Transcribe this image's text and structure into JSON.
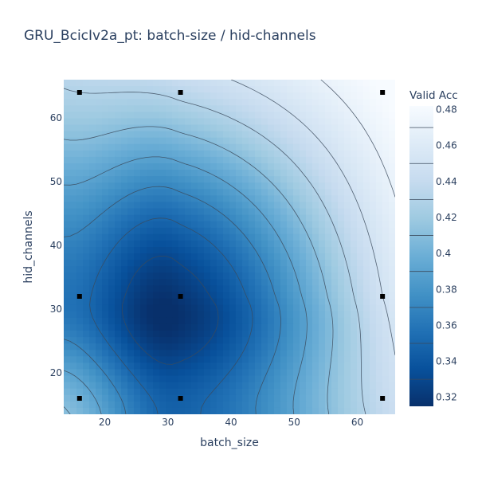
{
  "chart_data": {
    "type": "contour",
    "title": "GRU_BcicIv2a_pt: batch-size / hid-channels",
    "xlabel": "batch_size",
    "ylabel": "hid_channels",
    "colorbar_title": "Valid Acc",
    "xlim": [
      13.5,
      66
    ],
    "ylim": [
      13.5,
      66
    ],
    "x_ticks": [
      20,
      30,
      40,
      50,
      60
    ],
    "y_ticks": [
      20,
      30,
      40,
      50,
      60
    ],
    "z_range": [
      0.315,
      0.482
    ],
    "colorbar_ticks": [
      0.32,
      0.34,
      0.36,
      0.38,
      0.4,
      0.42,
      0.44,
      0.46,
      0.48
    ],
    "colorscale": [
      "#08306b",
      "#08519c",
      "#2171b5",
      "#4292c6",
      "#6baed6",
      "#9ecae1",
      "#c6dbef",
      "#deebf7",
      "#f7fbff"
    ],
    "points": [
      {
        "x": 16,
        "y": 16,
        "z": 0.4
      },
      {
        "x": 32,
        "y": 16,
        "z": 0.345
      },
      {
        "x": 64,
        "y": 16,
        "z": 0.44
      },
      {
        "x": 16,
        "y": 32,
        "z": 0.355
      },
      {
        "x": 32,
        "y": 32,
        "z": 0.32
      },
      {
        "x": 64,
        "y": 32,
        "z": 0.45
      },
      {
        "x": 16,
        "y": 64,
        "z": 0.43
      },
      {
        "x": 32,
        "y": 64,
        "z": 0.435
      },
      {
        "x": 64,
        "y": 64,
        "z": 0.482
      }
    ]
  }
}
